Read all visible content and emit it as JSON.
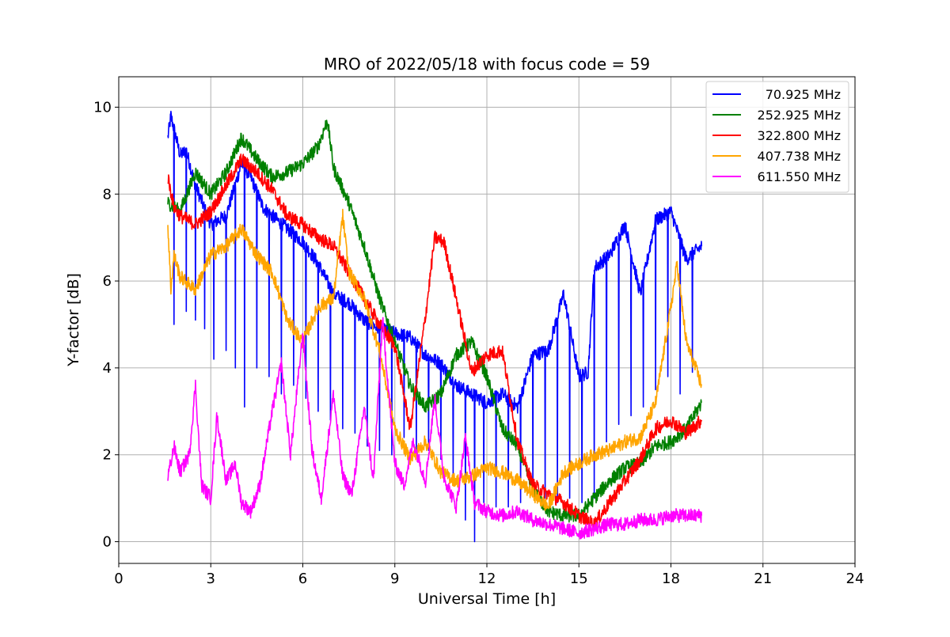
{
  "chart_data": {
    "type": "line",
    "title": "MRO of 2022/05/18 with focus code = 59",
    "xlabel": "Universal Time [h]",
    "ylabel": "Y-factor [dB]",
    "xlim": [
      0,
      24
    ],
    "ylim": [
      -0.5,
      10.7
    ],
    "xticks": [
      0,
      3,
      6,
      9,
      12,
      15,
      18,
      21,
      24
    ],
    "yticks": [
      0,
      2,
      4,
      6,
      8,
      10
    ],
    "grid": true,
    "legend_position": "top-right",
    "series": [
      {
        "name": "70.925 MHz",
        "color": "#0000ff",
        "x": [
          1.6,
          1.7,
          2.0,
          2.2,
          2.5,
          3.0,
          3.5,
          4.0,
          4.3,
          4.7,
          5.0,
          5.5,
          6.0,
          6.5,
          7.0,
          7.5,
          8.0,
          8.5,
          9.0,
          9.5,
          10.0,
          10.5,
          11.0,
          11.5,
          12.0,
          12.5,
          13.0,
          13.5,
          14.0,
          14.5,
          15.0,
          15.3,
          15.5,
          16.0,
          16.5,
          17.0,
          17.5,
          18.0,
          18.5,
          19.0
        ],
        "y": [
          9.3,
          9.8,
          8.9,
          9.0,
          8.2,
          7.3,
          7.5,
          8.7,
          8.4,
          7.7,
          7.5,
          7.2,
          6.9,
          6.4,
          5.7,
          5.5,
          5.1,
          4.9,
          4.8,
          4.7,
          4.3,
          4.1,
          3.6,
          3.4,
          3.2,
          3.4,
          3.1,
          4.3,
          4.4,
          5.7,
          3.8,
          3.9,
          6.3,
          6.6,
          7.3,
          5.7,
          7.4,
          7.6,
          6.5,
          6.8
        ],
        "dips": [
          [
            1.8,
            5.0
          ],
          [
            2.2,
            5.3
          ],
          [
            2.5,
            5.1
          ],
          [
            2.8,
            4.9
          ],
          [
            3.1,
            4.2
          ],
          [
            3.5,
            4.4
          ],
          [
            3.8,
            4.0
          ],
          [
            4.1,
            3.1
          ],
          [
            4.5,
            4.0
          ],
          [
            4.9,
            3.8
          ],
          [
            5.3,
            3.4
          ],
          [
            5.7,
            3.6
          ],
          [
            6.1,
            3.3
          ],
          [
            6.5,
            3.0
          ],
          [
            6.9,
            2.8
          ],
          [
            7.3,
            2.6
          ],
          [
            7.7,
            2.5
          ],
          [
            8.1,
            2.2
          ],
          [
            8.5,
            2.1
          ],
          [
            8.9,
            2.0
          ],
          [
            9.3,
            2.4
          ],
          [
            9.7,
            2.0
          ],
          [
            10.1,
            2.1
          ],
          [
            10.5,
            1.9
          ],
          [
            10.9,
            1.5
          ],
          [
            11.3,
            0.5
          ],
          [
            11.6,
            0.0
          ],
          [
            11.9,
            0.9
          ],
          [
            12.3,
            0.8
          ],
          [
            12.7,
            0.8
          ],
          [
            13.1,
            0.9
          ],
          [
            13.5,
            1.1
          ],
          [
            13.9,
            1.0
          ],
          [
            14.3,
            0.9
          ],
          [
            14.7,
            1.0
          ],
          [
            15.1,
            0.9
          ],
          [
            15.5,
            1.0
          ],
          [
            15.9,
            2.3
          ],
          [
            16.3,
            2.7
          ],
          [
            16.7,
            2.9
          ],
          [
            17.1,
            3.1
          ],
          [
            17.5,
            3.5
          ],
          [
            17.9,
            3.8
          ],
          [
            18.3,
            3.4
          ],
          [
            18.7,
            3.9
          ]
        ]
      },
      {
        "name": "252.925 MHz",
        "color": "#008000",
        "x": [
          1.6,
          2.0,
          2.5,
          3.0,
          3.5,
          4.0,
          4.5,
          5.0,
          5.5,
          6.0,
          6.5,
          6.8,
          7.0,
          7.5,
          8.0,
          8.5,
          9.0,
          9.5,
          10.0,
          10.5,
          11.0,
          11.5,
          12.0,
          12.5,
          13.0,
          13.5,
          14.0,
          14.5,
          15.0,
          15.5,
          16.0,
          16.5,
          17.0,
          17.5,
          18.0,
          18.5,
          19.0
        ],
        "y": [
          7.8,
          7.6,
          8.5,
          8.0,
          8.5,
          9.3,
          8.8,
          8.4,
          8.5,
          8.7,
          9.1,
          9.7,
          8.6,
          7.8,
          6.8,
          5.6,
          4.6,
          3.6,
          3.1,
          3.4,
          4.3,
          4.6,
          3.8,
          2.6,
          2.2,
          1.2,
          0.7,
          0.6,
          0.6,
          1.0,
          1.4,
          1.7,
          1.8,
          2.2,
          2.3,
          2.6,
          3.2
        ]
      },
      {
        "name": "322.800 MHz",
        "color": "#ff0000",
        "x": [
          1.6,
          1.8,
          2.0,
          2.5,
          3.0,
          3.5,
          4.0,
          4.5,
          5.0,
          5.5,
          6.0,
          6.5,
          7.0,
          7.5,
          8.0,
          8.5,
          9.0,
          9.5,
          10.0,
          10.3,
          10.6,
          11.0,
          11.5,
          12.0,
          12.5,
          13.0,
          13.5,
          14.0,
          14.5,
          15.0,
          15.5,
          16.0,
          16.5,
          17.0,
          17.5,
          18.0,
          18.5,
          19.0
        ],
        "y": [
          8.4,
          7.7,
          7.5,
          7.3,
          7.6,
          8.2,
          8.8,
          8.5,
          8.1,
          7.5,
          7.3,
          7.0,
          6.8,
          6.2,
          5.6,
          5.0,
          4.5,
          2.6,
          5.2,
          7.0,
          6.9,
          5.6,
          3.9,
          4.3,
          4.4,
          2.3,
          1.3,
          1.1,
          0.9,
          0.6,
          0.4,
          0.9,
          1.4,
          1.9,
          2.6,
          2.8,
          2.5,
          2.8
        ]
      },
      {
        "name": "407.738 MHz",
        "color": "#ffa500",
        "x": [
          1.6,
          1.7,
          1.8,
          2.0,
          2.5,
          3.0,
          3.5,
          4.0,
          4.5,
          5.0,
          5.5,
          6.0,
          6.5,
          7.0,
          7.3,
          7.5,
          8.0,
          8.5,
          9.0,
          9.5,
          10.0,
          10.5,
          11.0,
          11.5,
          12.0,
          12.5,
          13.0,
          13.5,
          14.0,
          14.5,
          15.0,
          15.5,
          16.0,
          16.5,
          17.0,
          17.5,
          18.0,
          18.2,
          18.5,
          19.0
        ],
        "y": [
          7.3,
          5.8,
          6.6,
          6.1,
          5.8,
          6.6,
          6.8,
          7.2,
          6.6,
          6.2,
          5.1,
          4.6,
          5.4,
          5.6,
          7.5,
          6.2,
          5.6,
          4.4,
          2.6,
          1.9,
          2.3,
          1.6,
          1.4,
          1.5,
          1.7,
          1.6,
          1.4,
          1.1,
          0.8,
          1.6,
          1.8,
          2.0,
          2.1,
          2.3,
          2.4,
          3.2,
          5.4,
          6.4,
          4.6,
          3.6
        ]
      },
      {
        "name": "611.550 MHz",
        "color": "#ff00ff",
        "x": [
          1.6,
          1.8,
          2.0,
          2.3,
          2.5,
          2.7,
          3.0,
          3.2,
          3.5,
          3.8,
          4.0,
          4.3,
          4.6,
          5.0,
          5.3,
          5.6,
          6.0,
          6.3,
          6.6,
          7.0,
          7.3,
          7.6,
          8.0,
          8.3,
          8.6,
          9.0,
          9.3,
          9.6,
          10.0,
          10.3,
          10.6,
          11.0,
          11.3,
          11.6,
          12.0,
          12.5,
          13.0,
          13.5,
          14.0,
          14.5,
          15.0,
          15.5,
          16.0,
          16.5,
          17.0,
          17.5,
          18.0,
          18.5,
          19.0
        ],
        "y": [
          1.5,
          2.2,
          1.6,
          2.0,
          3.6,
          1.3,
          1.0,
          2.9,
          1.4,
          1.8,
          0.9,
          0.7,
          1.3,
          3.0,
          4.1,
          2.0,
          4.8,
          2.1,
          1.0,
          3.4,
          1.5,
          1.1,
          3.1,
          1.4,
          5.1,
          1.8,
          1.3,
          2.3,
          1.4,
          3.3,
          1.5,
          0.8,
          2.4,
          0.9,
          0.7,
          0.6,
          0.7,
          0.5,
          0.4,
          0.3,
          0.2,
          0.3,
          0.4,
          0.4,
          0.5,
          0.5,
          0.6,
          0.6,
          0.6
        ]
      }
    ]
  }
}
